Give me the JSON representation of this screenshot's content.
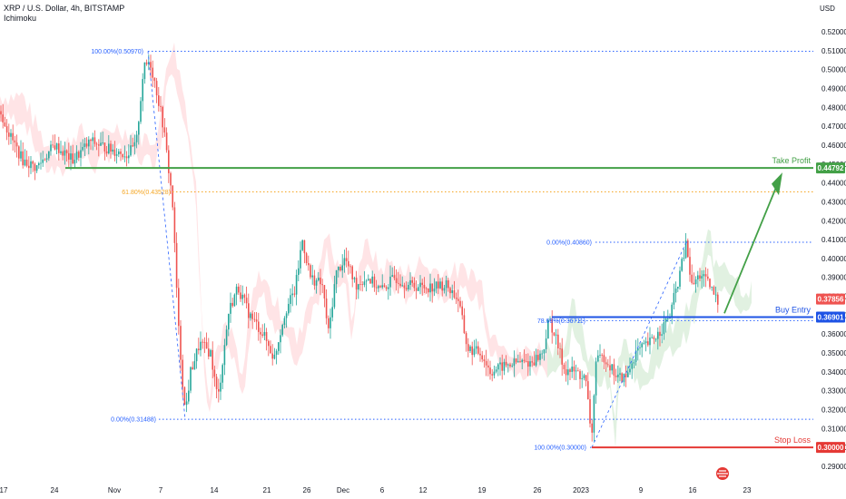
{
  "header": {
    "symbol": "XRP / U.S. Dollar, 4h, BITSTAMP",
    "indicator": "Ichimoku"
  },
  "axis": {
    "currency": "USD"
  },
  "colors": {
    "up": "#26a69a",
    "down": "#ef5350",
    "fib": "#2962ff",
    "fib_mid": "#f5a623",
    "take_profit": "#43a047",
    "buy_entry": "#1e53e5",
    "stop_loss": "#e53935",
    "last_price": "#ef5350",
    "cloud_up": "#c8e6c9",
    "cloud_down": "#ffcdd2"
  },
  "chart_data": {
    "type": "candlestick",
    "ylim": [
      0.285,
      0.525
    ],
    "y_ticks": [
      "0.29000",
      "0.30000",
      "0.31000",
      "0.32000",
      "0.33000",
      "0.34000",
      "0.35000",
      "0.36000",
      "0.37000",
      "0.38000",
      "0.39000",
      "0.40000",
      "0.41000",
      "0.42000",
      "0.43000",
      "0.44000",
      "0.45000",
      "0.46000",
      "0.47000",
      "0.48000",
      "0.49000",
      "0.50000",
      "0.51000",
      "0.52000"
    ],
    "x_ticks": [
      "17",
      "24",
      "Nov",
      "7",
      "14",
      "21",
      "26",
      "Dec",
      "6",
      "12",
      "19",
      "26",
      "2023",
      "9",
      "16",
      "23"
    ],
    "price_path": [
      [
        0,
        0.478
      ],
      [
        10,
        0.466
      ],
      [
        25,
        0.452
      ],
      [
        40,
        0.448
      ],
      [
        60,
        0.46
      ],
      [
        80,
        0.452
      ],
      [
        100,
        0.462
      ],
      [
        120,
        0.458
      ],
      [
        140,
        0.455
      ],
      [
        150,
        0.46
      ],
      [
        158,
        0.5
      ],
      [
        165,
        0.505
      ],
      [
        172,
        0.49
      ],
      [
        180,
        0.47
      ],
      [
        190,
        0.43
      ],
      [
        197,
        0.36
      ],
      [
        204,
        0.318
      ],
      [
        210,
        0.34
      ],
      [
        220,
        0.355
      ],
      [
        232,
        0.35
      ],
      [
        240,
        0.325
      ],
      [
        252,
        0.372
      ],
      [
        262,
        0.385
      ],
      [
        275,
        0.37
      ],
      [
        290,
        0.36
      ],
      [
        302,
        0.347
      ],
      [
        314,
        0.372
      ],
      [
        325,
        0.383
      ],
      [
        333,
        0.41
      ],
      [
        342,
        0.39
      ],
      [
        355,
        0.386
      ],
      [
        362,
        0.36
      ],
      [
        370,
        0.392
      ],
      [
        380,
        0.4
      ],
      [
        392,
        0.386
      ],
      [
        405,
        0.39
      ],
      [
        420,
        0.383
      ],
      [
        435,
        0.39
      ],
      [
        450,
        0.386
      ],
      [
        465,
        0.385
      ],
      [
        478,
        0.385
      ],
      [
        492,
        0.386
      ],
      [
        505,
        0.378
      ],
      [
        515,
        0.352
      ],
      [
        530,
        0.35
      ],
      [
        540,
        0.34
      ],
      [
        555,
        0.343
      ],
      [
        570,
        0.345
      ],
      [
        585,
        0.345
      ],
      [
        598,
        0.35
      ],
      [
        605,
        0.368
      ],
      [
        612,
        0.358
      ],
      [
        622,
        0.341
      ],
      [
        634,
        0.34
      ],
      [
        645,
        0.336
      ],
      [
        652,
        0.305
      ],
      [
        656,
        0.345
      ],
      [
        666,
        0.348
      ],
      [
        680,
        0.337
      ],
      [
        690,
        0.337
      ],
      [
        700,
        0.35
      ],
      [
        715,
        0.355
      ],
      [
        728,
        0.362
      ],
      [
        738,
        0.37
      ],
      [
        748,
        0.39
      ],
      [
        756,
        0.408
      ],
      [
        762,
        0.385
      ],
      [
        772,
        0.392
      ],
      [
        782,
        0.385
      ],
      [
        792,
        0.376
      ]
    ],
    "fib_levels": [
      {
        "label": "100.00%(0.50970)",
        "value": 0.5097,
        "style": "fib"
      },
      {
        "label": "61.80%(0.43528)",
        "value": 0.43528,
        "style": "fib_mid"
      },
      {
        "label": "0.00%(0.31488)",
        "value": 0.31488,
        "style": "fib"
      },
      {
        "label": "0.00%(0.40860)",
        "value": 0.4086,
        "style": "fib"
      },
      {
        "label": "78.60%(0.36711)",
        "value": 0.36711,
        "style": "fib"
      },
      {
        "label": "100.00%(0.30000)",
        "value": 0.3,
        "style": "fib"
      }
    ],
    "levels": [
      {
        "name": "Take Profit",
        "value": 0.44792,
        "tag": "0.44792",
        "style": "take_profit"
      },
      {
        "name": "Buy Entry",
        "value": 0.36901,
        "tag": "0.36901",
        "style": "buy_entry"
      },
      {
        "name": "Stop Loss",
        "value": 0.3,
        "tag": "0.30000",
        "style": "stop_loss"
      }
    ],
    "last_price": {
      "value": 0.37856,
      "tag": "0.37856"
    }
  }
}
